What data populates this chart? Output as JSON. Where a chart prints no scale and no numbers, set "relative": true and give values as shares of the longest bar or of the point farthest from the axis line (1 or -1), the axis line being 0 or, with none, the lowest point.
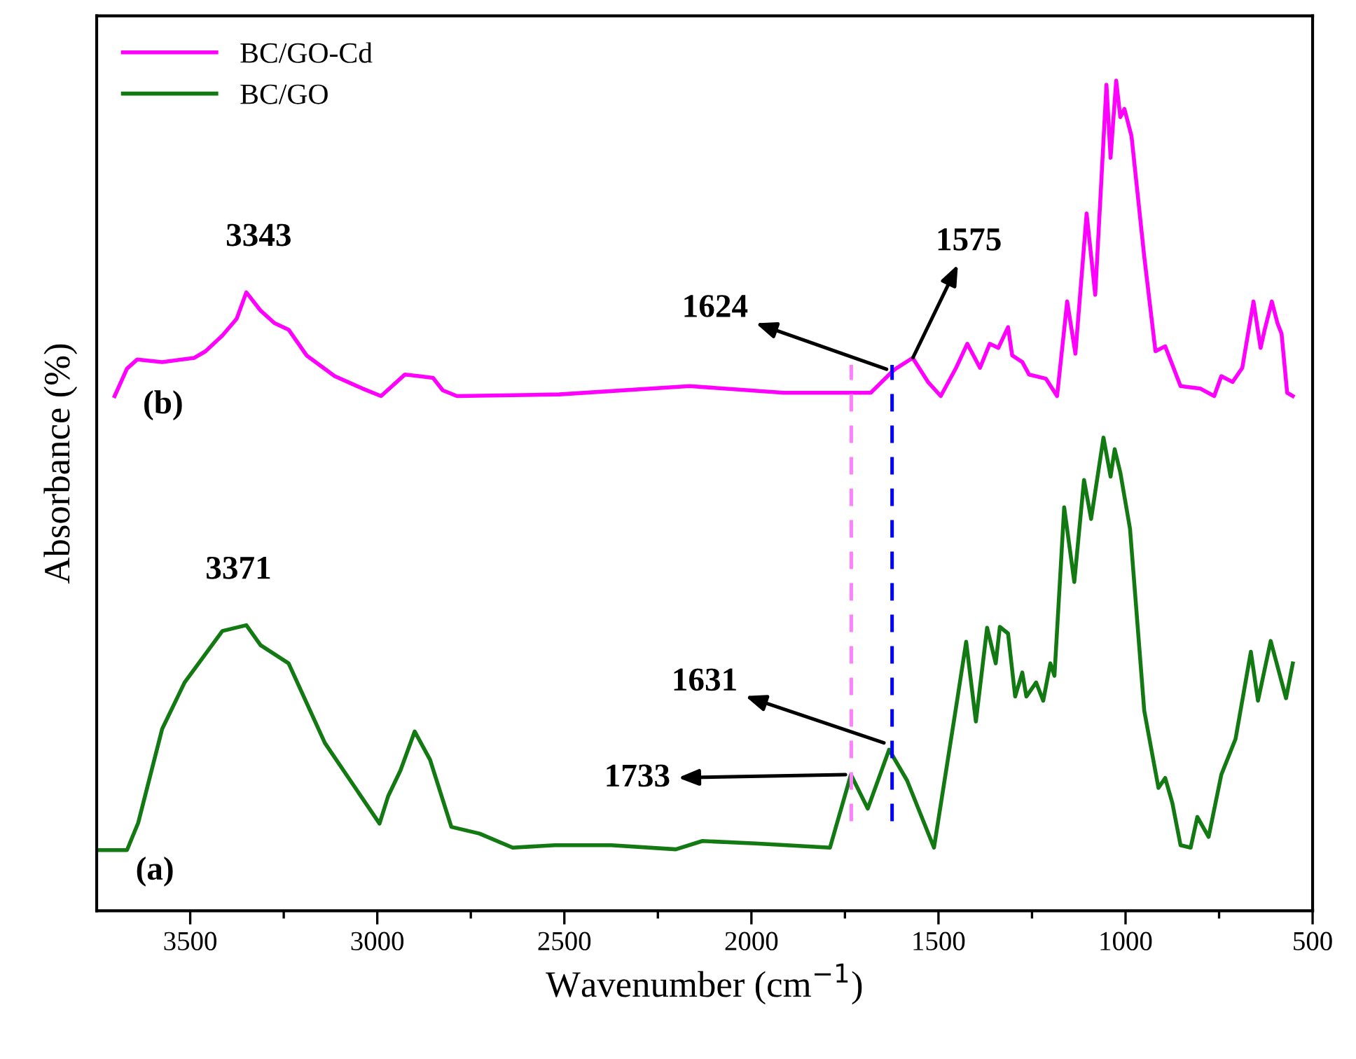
{
  "chart_data": {
    "type": "line",
    "relative": true,
    "xlabel": "Wavenumber (cm$^{−1}$)",
    "ylabel": "Absorbance (%)",
    "xlim": [
      3750,
      500
    ],
    "xticks": [
      3500,
      3000,
      2500,
      2000,
      1500,
      1000,
      500
    ],
    "legend": "top left",
    "line_style": "solid",
    "marker": "none",
    "grid": false,
    "tick_labels": "x",
    "series": [
      {
        "name": "BC/GO-Cd",
        "color": "#ff00ff",
        "x": [
          3702,
          3669,
          3642,
          3575,
          3489,
          3459,
          3414,
          3376,
          3350,
          3312,
          3275,
          3237,
          3189,
          3114,
          3039,
          2990,
          2926,
          2889,
          2851,
          2825,
          2787,
          2514,
          2165,
          1914,
          1681,
          1625,
          1614,
          1569,
          1528,
          1494,
          1453,
          1423,
          1389,
          1363,
          1340,
          1314,
          1303,
          1276,
          1258,
          1213,
          1183,
          1156,
          1134,
          1104,
          1081,
          1051,
          1040,
          1025,
          1014,
          1003,
          984,
          950,
          920,
          894,
          853,
          800,
          763,
          744,
          714,
          688,
          658,
          639,
          628,
          609,
          594,
          583,
          568,
          553
        ],
        "values": [
          0.62,
          0.653,
          0.664,
          0.661,
          0.666,
          0.674,
          0.693,
          0.713,
          0.745,
          0.723,
          0.708,
          0.7,
          0.669,
          0.644,
          0.629,
          0.62,
          0.646,
          0.644,
          0.642,
          0.627,
          0.62,
          0.622,
          0.632,
          0.624,
          0.624,
          0.649,
          0.653,
          0.666,
          0.637,
          0.62,
          0.654,
          0.683,
          0.654,
          0.683,
          0.678,
          0.703,
          0.669,
          0.661,
          0.646,
          0.641,
          0.62,
          0.734,
          0.671,
          0.84,
          0.742,
          0.995,
          0.907,
          1.0,
          0.956,
          0.966,
          0.933,
          0.788,
          0.674,
          0.68,
          0.632,
          0.629,
          0.62,
          0.644,
          0.637,
          0.654,
          0.734,
          0.678,
          0.7,
          0.734,
          0.708,
          0.695,
          0.624,
          0.62
        ]
      },
      {
        "name": "BC/GO",
        "color": "#137a13",
        "x": [
          3745,
          3669,
          3639,
          3575,
          3515,
          3414,
          3350,
          3312,
          3237,
          3140,
          2994,
          2971,
          2938,
          2900,
          2859,
          2802,
          2727,
          2638,
          2525,
          2375,
          2202,
          2131,
          1989,
          1790,
          1734,
          1689,
          1632,
          1584,
          1512,
          1452,
          1426,
          1400,
          1370,
          1347,
          1336,
          1314,
          1295,
          1276,
          1265,
          1239,
          1220,
          1201,
          1190,
          1164,
          1137,
          1111,
          1092,
          1059,
          1040,
          1029,
          1014,
          988,
          950,
          912,
          894,
          875,
          853,
          826,
          808,
          778,
          744,
          706,
          665,
          646,
          612,
          571,
          553
        ],
        "values": [
          0.073,
          0.073,
          0.106,
          0.219,
          0.275,
          0.337,
          0.344,
          0.32,
          0.298,
          0.202,
          0.105,
          0.138,
          0.169,
          0.216,
          0.182,
          0.101,
          0.093,
          0.076,
          0.079,
          0.079,
          0.074,
          0.084,
          0.081,
          0.076,
          0.164,
          0.123,
          0.194,
          0.157,
          0.076,
          0.248,
          0.324,
          0.228,
          0.341,
          0.298,
          0.342,
          0.334,
          0.258,
          0.287,
          0.258,
          0.275,
          0.253,
          0.298,
          0.283,
          0.486,
          0.396,
          0.519,
          0.472,
          0.57,
          0.523,
          0.556,
          0.528,
          0.46,
          0.241,
          0.148,
          0.16,
          0.13,
          0.079,
          0.076,
          0.113,
          0.089,
          0.164,
          0.207,
          0.312,
          0.253,
          0.325,
          0.256,
          0.298
        ]
      }
    ],
    "ref_lines": [
      {
        "axis": "x",
        "value": 1733,
        "color": "#ff80ff",
        "line_style": "dashed"
      },
      {
        "axis": "x",
        "value": 1624,
        "color": "#0000ff",
        "line_style": "dashed"
      }
    ],
    "annotations": [
      {
        "text": "3343",
        "x": 3343,
        "y": 0.745
      },
      {
        "text": "3371",
        "x": 3371,
        "y": 0.344
      },
      {
        "text": "1624",
        "x": 1624,
        "y": 0.65
      },
      {
        "text": "1575",
        "x": 1575,
        "y": 0.66
      },
      {
        "text": "1631",
        "x": 1631,
        "y": 0.2
      },
      {
        "text": "1733",
        "x": 1733,
        "y": 0.164
      },
      "(b)",
      "(a)"
    ]
  }
}
